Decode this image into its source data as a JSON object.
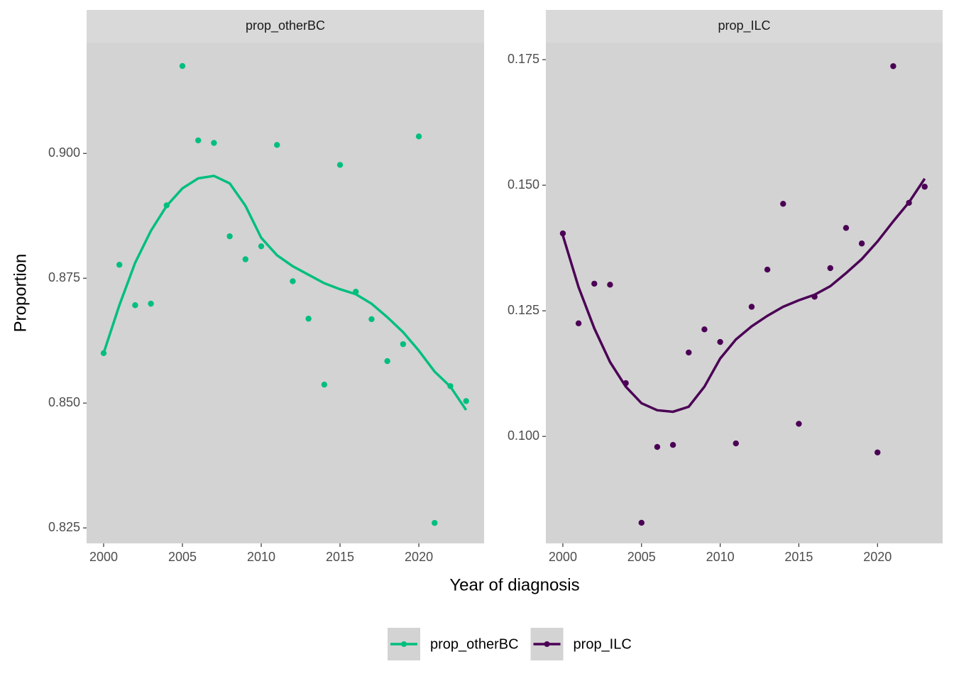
{
  "chart_data": [
    {
      "type": "scatter",
      "title": "prop_otherBC",
      "x": [
        2000,
        2001,
        2002,
        2003,
        2004,
        2005,
        2006,
        2007,
        2008,
        2009,
        2010,
        2011,
        2012,
        2013,
        2014,
        2015,
        2016,
        2017,
        2018,
        2019,
        2020,
        2021,
        2022,
        2023
      ],
      "series": [
        {
          "name": "prop_otherBC",
          "color": "#00bf7d",
          "values": [
            0.86,
            0.8777,
            0.8696,
            0.8699,
            0.8896,
            0.9175,
            0.9026,
            0.9021,
            0.8834,
            0.8788,
            0.8814,
            0.9017,
            0.8744,
            0.8669,
            0.8537,
            0.8977,
            0.8723,
            0.8668,
            0.8584,
            0.8618,
            0.9034,
            0.826,
            0.8534,
            0.8504
          ],
          "smooth": [
            0.86,
            0.8696,
            0.8781,
            0.8845,
            0.8895,
            0.893,
            0.895,
            0.8955,
            0.894,
            0.8895,
            0.8831,
            0.8796,
            0.8774,
            0.8757,
            0.874,
            0.8728,
            0.8718,
            0.8699,
            0.8672,
            0.8642,
            0.8605,
            0.8563,
            0.8533,
            0.8486
          ]
        }
      ],
      "xlim": [
        1998.92,
        2024.14
      ],
      "xticks": [
        2000,
        2005,
        2010,
        2015,
        2020
      ],
      "ylim": [
        0.8219,
        0.9222
      ],
      "yticks": [
        {
          "value": 0.825,
          "label": "0.825"
        },
        {
          "value": 0.85,
          "label": "0.850"
        },
        {
          "value": 0.875,
          "label": "0.875"
        },
        {
          "value": 0.9,
          "label": "0.900"
        }
      ]
    },
    {
      "type": "scatter",
      "title": "prop_ILC",
      "x": [
        2000,
        2001,
        2002,
        2003,
        2004,
        2005,
        2006,
        2007,
        2008,
        2009,
        2010,
        2011,
        2012,
        2013,
        2014,
        2015,
        2016,
        2017,
        2018,
        2019,
        2020,
        2021,
        2022,
        2023
      ],
      "series": [
        {
          "name": "prop_ILC",
          "color": "#4b0055",
          "values": [
            0.1404,
            0.1225,
            0.1304,
            0.1302,
            0.1106,
            0.0828,
            0.0979,
            0.0983,
            0.1167,
            0.1213,
            0.1188,
            0.0986,
            0.1258,
            0.1332,
            0.1463,
            0.1025,
            0.1278,
            0.1335,
            0.1415,
            0.1384,
            0.0968,
            0.1737,
            0.1465,
            0.1497
          ],
          "smooth": [
            0.14,
            0.1297,
            0.1215,
            0.1148,
            0.1099,
            0.1066,
            0.1052,
            0.1049,
            0.1059,
            0.1099,
            0.1155,
            0.1193,
            0.1219,
            0.124,
            0.1258,
            0.1271,
            0.1282,
            0.1299,
            0.1325,
            0.1353,
            0.1388,
            0.1428,
            0.1466,
            0.1513
          ]
        }
      ],
      "xlim": [
        1998.92,
        2024.14
      ],
      "xticks": [
        2000,
        2005,
        2010,
        2015,
        2020
      ],
      "ylim": [
        0.0787,
        0.1784
      ],
      "yticks": [
        {
          "value": 0.1,
          "label": "0.100"
        },
        {
          "value": 0.125,
          "label": "0.125"
        },
        {
          "value": 0.15,
          "label": "0.150"
        },
        {
          "value": 0.175,
          "label": "0.175"
        }
      ]
    }
  ],
  "x_label": "Year of diagnosis",
  "y_label": "Proportion"
}
